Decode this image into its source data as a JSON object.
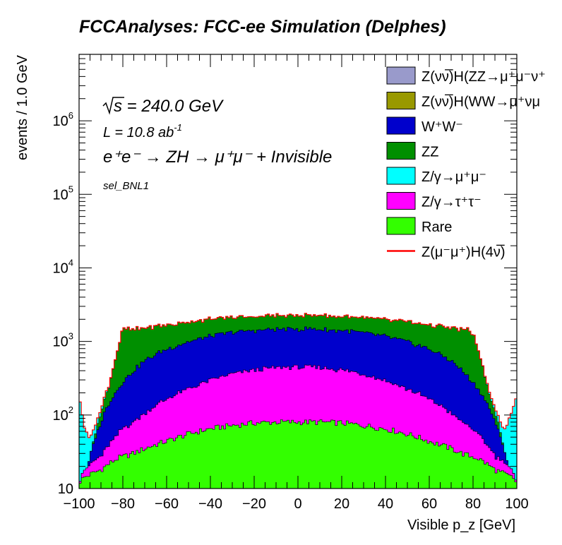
{
  "chart_data": {
    "type": "area",
    "title": "FCCAnalyses: FCC-ee Simulation (Delphes)",
    "xlabel": "Visible p_z [GeV]",
    "ylabel": "events / 1.0 GeV",
    "xlim": [
      -100,
      100
    ],
    "ylim": [
      10,
      8000000
    ],
    "yscale": "log",
    "stacked": true,
    "x_ticks": [
      "−100",
      "−80",
      "−60",
      "−40",
      "−20",
      "0",
      "20",
      "40",
      "60",
      "80",
      "100"
    ],
    "y_ticks": [
      {
        "base": "10",
        "exp": ""
      },
      {
        "base": "10",
        "exp": "2"
      },
      {
        "base": "10",
        "exp": "3"
      },
      {
        "base": "10",
        "exp": "4"
      },
      {
        "base": "10",
        "exp": "5"
      },
      {
        "base": "10",
        "exp": "6"
      }
    ],
    "annotations": {
      "sqrt_s": "s = 240.0 GeV",
      "lumi_prefix": "L = 10.8 ab",
      "lumi_exp": "-1",
      "process": "e⁺e⁻ → ZH → μ⁺μ⁻ + Invisible",
      "selection": "sel_BNL1"
    },
    "legend_position": "top-right",
    "legend": [
      {
        "label": "Z(νν̅)H(ZZ→μ⁺μ⁻ν⁺",
        "color": "#999acb",
        "style": "fill"
      },
      {
        "label": "Z(νν̅)H(WW→μ⁺νμ",
        "color": "#999900",
        "style": "fill"
      },
      {
        "label": "W⁺W⁻",
        "color": "#0000cc",
        "style": "fill"
      },
      {
        "label": "ZZ",
        "color": "#008f00",
        "style": "fill"
      },
      {
        "label": "Z/γ→μ⁺μ⁻",
        "color": "#00ffff",
        "style": "fill"
      },
      {
        "label": "Z/γ→τ⁺τ⁻",
        "color": "#ff00ff",
        "style": "fill"
      },
      {
        "label": "Rare",
        "color": "#33ff00",
        "style": "fill"
      },
      {
        "label": "Z(μ⁻μ⁺)H(4ν̅)",
        "color": "#ff0000",
        "style": "line"
      }
    ],
    "stack_profile": {
      "x": [
        -100,
        -98,
        -96,
        -94,
        -92,
        -90,
        -88,
        -86,
        -84,
        -82,
        -80,
        -75,
        -70,
        -60,
        -50,
        -40,
        -30,
        -20,
        -10,
        0,
        10,
        20,
        30,
        40,
        50,
        60,
        70,
        75,
        78,
        80,
        82,
        84,
        86,
        88,
        90,
        92,
        94,
        96,
        98,
        100
      ],
      "series": [
        {
          "name": "Rare",
          "values": [
            12,
            14,
            15,
            16,
            17,
            18,
            20,
            22,
            24,
            26,
            27,
            30,
            35,
            44,
            55,
            65,
            72,
            78,
            80,
            80,
            80,
            78,
            72,
            65,
            55,
            44,
            35,
            30,
            28,
            27,
            26,
            24,
            22,
            20,
            18,
            17,
            16,
            15,
            14,
            12
          ]
        },
        {
          "name": "Z/γ→τ⁺τ⁻",
          "values": [
            0,
            3,
            5,
            6,
            8,
            10,
            14,
            18,
            24,
            30,
            38,
            50,
            70,
            120,
            170,
            230,
            290,
            330,
            360,
            370,
            360,
            330,
            290,
            230,
            170,
            120,
            70,
            50,
            42,
            38,
            30,
            24,
            18,
            14,
            10,
            8,
            6,
            5,
            3,
            0
          ]
        },
        {
          "name": "W⁺W⁻",
          "values": [
            0,
            0,
            0,
            12,
            30,
            50,
            80,
            110,
            140,
            175,
            215,
            320,
            440,
            620,
            760,
            880,
            960,
            1000,
            1020,
            1030,
            1020,
            1000,
            960,
            880,
            760,
            620,
            440,
            320,
            250,
            215,
            175,
            140,
            110,
            80,
            50,
            30,
            12,
            0,
            0,
            0
          ]
        },
        {
          "name": "ZZ",
          "values": [
            0,
            0,
            0,
            0,
            10,
            30,
            60,
            120,
            300,
            600,
            1200,
            1050,
            980,
            900,
            860,
            820,
            790,
            780,
            790,
            800,
            790,
            780,
            790,
            820,
            860,
            900,
            980,
            1050,
            1100,
            1000,
            600,
            300,
            120,
            60,
            30,
            10,
            0,
            0,
            0,
            0
          ]
        },
        {
          "name": "Z/γ→μ⁺μ⁻",
          "values": [
            180,
            60,
            30,
            20,
            15,
            12,
            10,
            8,
            6,
            5,
            4,
            3,
            2,
            1,
            1,
            1,
            1,
            1,
            1,
            1,
            1,
            1,
            1,
            1,
            1,
            1,
            2,
            3,
            4,
            5,
            6,
            8,
            10,
            12,
            15,
            20,
            30,
            60,
            100,
            180
          ]
        }
      ]
    }
  }
}
